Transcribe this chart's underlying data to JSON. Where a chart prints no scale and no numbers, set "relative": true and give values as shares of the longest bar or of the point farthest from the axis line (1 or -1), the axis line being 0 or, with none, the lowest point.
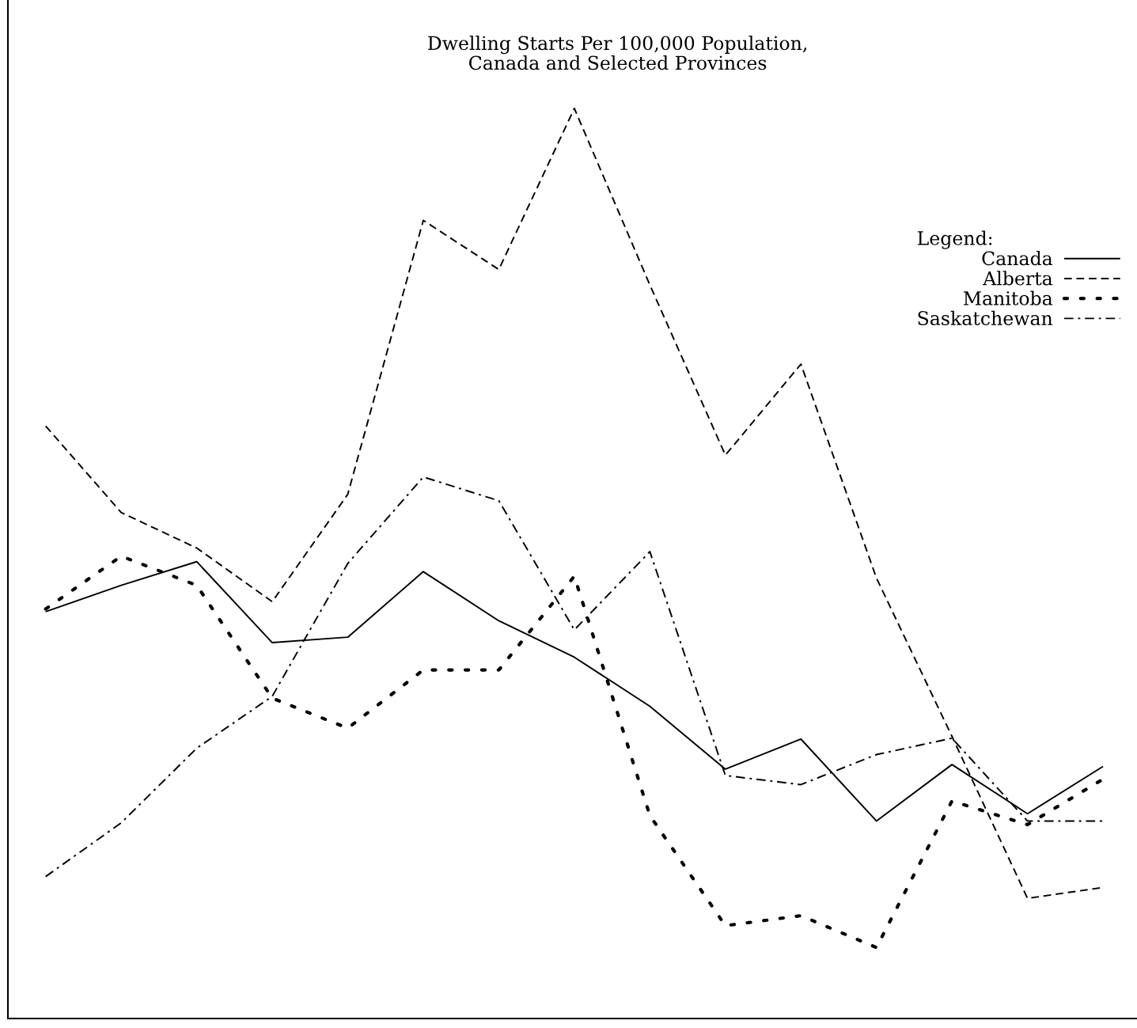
{
  "chart_data": {
    "type": "line",
    "title": "Dwelling Starts Per 100,000 Population,\nCanada and Selected Provinces",
    "relative": true,
    "legend_title": "Legend:",
    "legend": "top right",
    "grid": false,
    "marker": "none",
    "categories": [
      null,
      null,
      null,
      null,
      null,
      null,
      null,
      null,
      null,
      null,
      null,
      null,
      null,
      null,
      null
    ],
    "series": [
      {
        "name": "Canada",
        "color": "#000000",
        "line_style": "solid",
        "values": [
          0.447,
          0.476,
          0.502,
          0.413,
          0.419,
          0.491,
          0.437,
          0.397,
          0.343,
          0.274,
          0.307,
          0.217,
          0.279,
          0.225,
          0.277
        ]
      },
      {
        "name": "Alberta",
        "color": "#000000",
        "line_style": "dashed",
        "values": [
          0.651,
          0.556,
          0.517,
          0.458,
          0.576,
          0.877,
          0.823,
          1.0,
          0.806,
          0.619,
          0.719,
          0.484,
          0.31,
          0.132,
          0.144
        ]
      },
      {
        "name": "Manitoba",
        "color": "#000000",
        "line_style": "dotted",
        "values": [
          0.45,
          0.508,
          0.476,
          0.352,
          0.319,
          0.383,
          0.383,
          0.486,
          0.223,
          0.102,
          0.113,
          0.078,
          0.239,
          0.213,
          0.263
        ]
      },
      {
        "name": "Saskatchewan",
        "color": "#000000",
        "line_style": "dashdot",
        "values": [
          0.156,
          0.215,
          0.297,
          0.354,
          0.5,
          0.595,
          0.569,
          0.427,
          0.513,
          0.267,
          0.257,
          0.29,
          0.308,
          0.217,
          0.217
        ]
      }
    ]
  }
}
